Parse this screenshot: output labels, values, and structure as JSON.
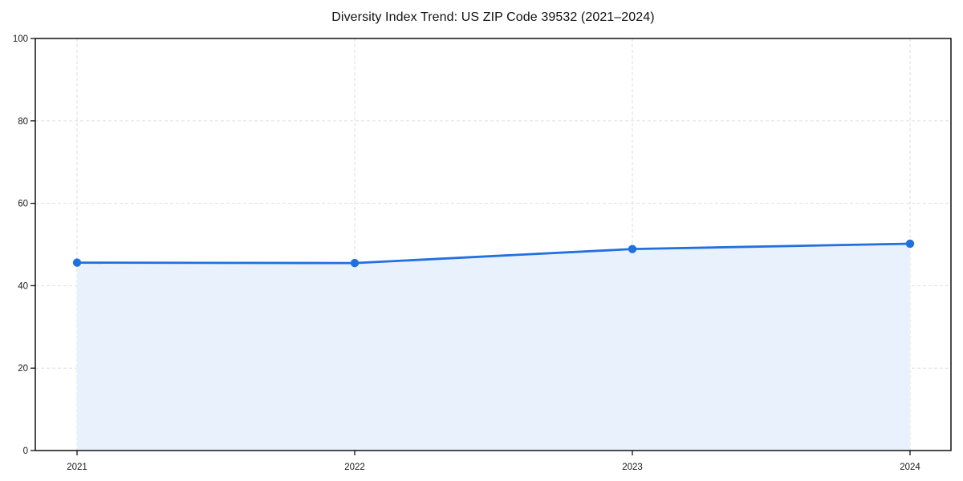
{
  "page": {
    "background_color": "#ffffff"
  },
  "chart_data": {
    "type": "area",
    "title": "Diversity Index Trend: US ZIP Code 39532 (2021–2024)",
    "series_name": "Diversity Index",
    "x": [
      2021,
      2022,
      2023,
      2024
    ],
    "values": [
      45.6,
      45.5,
      48.9,
      50.2
    ],
    "xlabel": "",
    "ylabel": "",
    "ylim": [
      0,
      100
    ],
    "yticks": [
      0,
      20,
      40,
      60,
      80,
      100
    ],
    "xtick_labels": [
      "2021",
      "2022",
      "2023",
      "2024"
    ],
    "grid": "dashed-both-axes",
    "legend": "none",
    "marker": "circle",
    "colors": {
      "line": "#2170e0",
      "marker": "#2170e0",
      "fill": "#e9f1fc",
      "grid": "#dedede",
      "spine": "#000000",
      "tick_label": "#1a1a1a",
      "title": "#111111",
      "background": "#ffffff"
    }
  }
}
